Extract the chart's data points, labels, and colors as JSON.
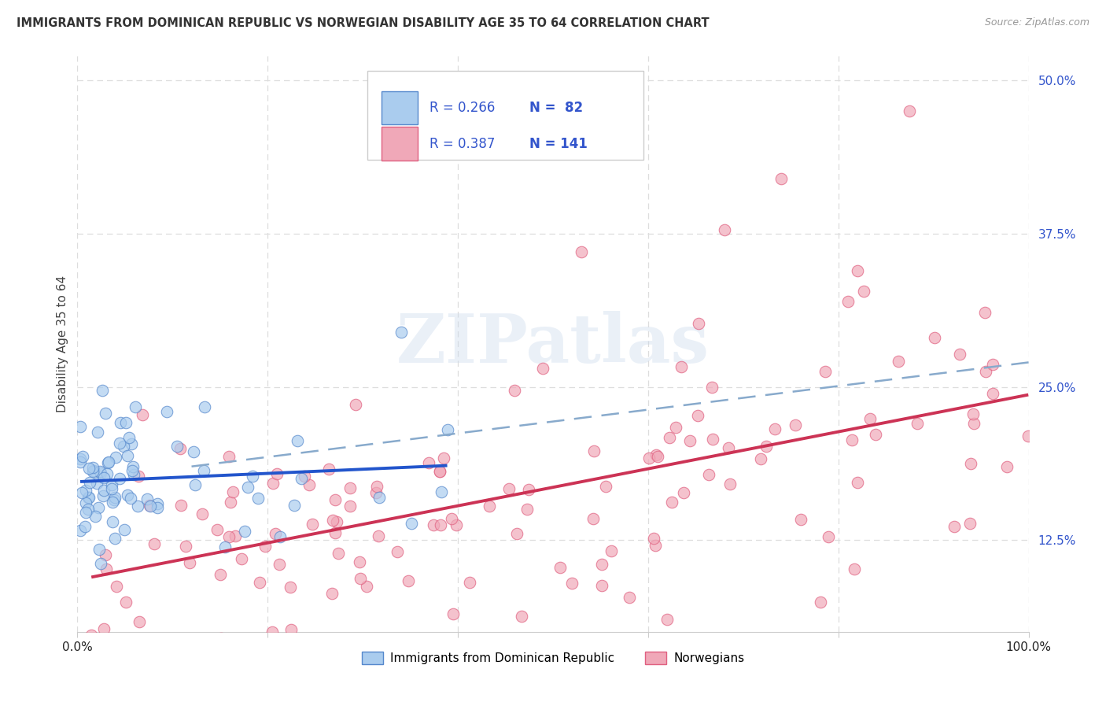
{
  "title": "IMMIGRANTS FROM DOMINICAN REPUBLIC VS NORWEGIAN DISABILITY AGE 35 TO 64 CORRELATION CHART",
  "source": "Source: ZipAtlas.com",
  "ylabel": "Disability Age 35 to 64",
  "series1_label": "Immigrants from Dominican Republic",
  "series2_label": "Norwegians",
  "series1_face": "#aaccee",
  "series2_face": "#f0a8b8",
  "series1_edge": "#5588cc",
  "series2_edge": "#e06080",
  "trend1_color": "#2255cc",
  "trend2_color": "#cc3355",
  "dashed_color": "#88aacc",
  "grid_color": "#dddddd",
  "title_color": "#333333",
  "axis_label_color": "#3355cc",
  "background_color": "#ffffff",
  "watermark": "ZIPatlas",
  "xlim": [
    0.0,
    1.0
  ],
  "ylim": [
    0.05,
    0.52
  ],
  "ytick_vals": [
    0.125,
    0.25,
    0.375,
    0.5
  ],
  "ytick_labels": [
    "12.5%",
    "25.0%",
    "37.5%",
    "50.0%"
  ],
  "xtick_vals": [
    0.0,
    0.2,
    0.4,
    0.6,
    0.8,
    1.0
  ],
  "xtick_labels": [
    "0.0%",
    "",
    "",
    "",
    "",
    "100.0%"
  ],
  "legend_r1": "R = 0.266",
  "legend_n1": "N =  82",
  "legend_r2": "R = 0.387",
  "legend_n2": "N = 141",
  "n1": 82,
  "n2": 141
}
